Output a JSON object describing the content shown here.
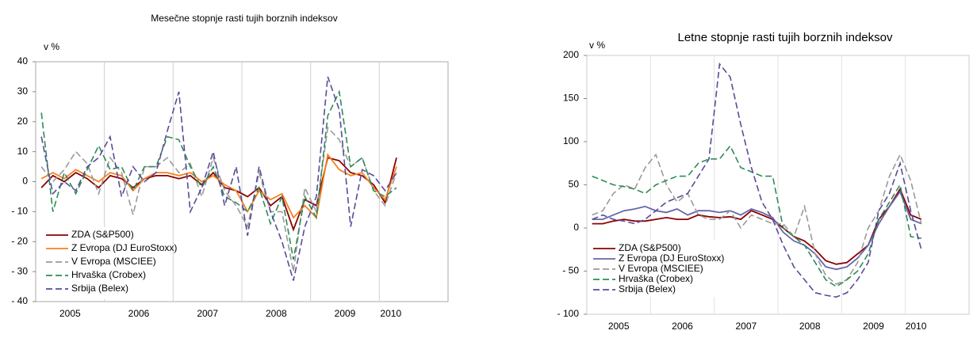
{
  "chart_data": [
    {
      "type": "line",
      "title": "Mesečne stopnje rasti tujih borznih indeksov",
      "y_label": "v %",
      "categories": [
        null,
        null,
        null,
        "2005",
        null,
        null,
        null,
        null,
        null,
        "2006",
        null,
        null,
        null,
        null,
        null,
        "2007",
        null,
        null,
        null,
        null,
        null,
        "2008",
        null,
        null,
        null,
        null,
        null,
        "2009",
        null,
        null,
        null,
        "2010"
      ],
      "ylim": [
        -40,
        40
      ],
      "yticks": [
        {
          "value": -40,
          "label": "- 40"
        },
        {
          "value": -30,
          "label": "- 30"
        },
        {
          "value": -20,
          "label": "- 20"
        },
        {
          "value": -10,
          "label": "- 10"
        },
        0,
        10,
        20,
        30,
        40
      ],
      "grid": false,
      "legend": "lower left",
      "series": [
        {
          "name": "ZDA (S&P500)",
          "color": "#8b0000",
          "dashed": false,
          "values": [
            -2,
            2,
            0,
            3,
            1,
            -2,
            2,
            1,
            -2,
            1,
            2,
            2,
            1,
            2,
            -1,
            3,
            -2,
            -3,
            -5,
            -2,
            -8,
            -5,
            -16,
            -6,
            -8,
            8,
            7,
            3,
            2,
            -1,
            -7,
            8
          ]
        },
        {
          "name": "Z Evropa (DJ EuroStoxx)",
          "color": "#f58220",
          "dashed": false,
          "values": [
            1,
            3,
            1,
            4,
            2,
            0,
            3,
            2,
            -3,
            1,
            3,
            3,
            2,
            3,
            0,
            2,
            -1,
            -3,
            -10,
            -3,
            -6,
            -4,
            -12,
            -8,
            -12,
            9,
            4,
            2,
            3,
            -2,
            -6,
            5
          ]
        },
        {
          "name": "V Evropa (MSCIEE)",
          "color": "#9a9a9a",
          "dashed": true,
          "values": [
            5,
            0,
            4,
            10,
            6,
            -4,
            8,
            3,
            -11,
            5,
            5,
            8,
            3,
            6,
            -5,
            8,
            -3,
            -8,
            -15,
            3,
            -10,
            -10,
            -30,
            -2,
            -10,
            18,
            14,
            5,
            8,
            -3,
            -8,
            3
          ]
        },
        {
          "name": "Hrvaška (Crobex)",
          "color": "#2e8b57",
          "dashed": true,
          "values": [
            23,
            -10,
            3,
            -4,
            4,
            12,
            4,
            5,
            -3,
            5,
            5,
            15,
            14,
            5,
            -2,
            5,
            -5,
            -7,
            -10,
            -2,
            -14,
            -5,
            -26,
            -5,
            -12,
            22,
            30,
            5,
            8,
            -3,
            -5,
            -2
          ]
        },
        {
          "name": "Srbija (Belex)",
          "color": "#5b4a9a",
          "dashed": true,
          "values": [
            15,
            -4,
            0,
            -3,
            5,
            8,
            15,
            -5,
            5,
            0,
            3,
            17,
            30,
            -10,
            -2,
            10,
            -8,
            5,
            -18,
            5,
            -10,
            -20,
            -33,
            -15,
            -5,
            35,
            24,
            -15,
            4,
            2,
            -3,
            3
          ]
        }
      ]
    },
    {
      "type": "line",
      "title": "Letne stopnje rasti tujih borznih indeksov",
      "y_label": "v %",
      "categories": [
        null,
        null,
        null,
        "2005",
        null,
        null,
        null,
        null,
        null,
        "2006",
        null,
        null,
        null,
        null,
        null,
        "2007",
        null,
        null,
        null,
        null,
        null,
        "2008",
        null,
        null,
        null,
        null,
        null,
        "2009",
        null,
        null,
        null,
        "2010"
      ],
      "ylim": [
        -100,
        200
      ],
      "yticks": [
        {
          "value": -100,
          "label": "- 100"
        },
        {
          "value": -50,
          "label": "- 50"
        },
        0,
        50,
        100,
        150,
        200
      ],
      "grid": false,
      "legend": "lower left",
      "series": [
        {
          "name": "ZDA (S&P500)",
          "color": "#8b0000",
          "dashed": false,
          "values": [
            5,
            5,
            8,
            10,
            8,
            8,
            10,
            12,
            10,
            10,
            15,
            13,
            12,
            13,
            10,
            20,
            15,
            10,
            0,
            -10,
            -15,
            -25,
            -38,
            -42,
            -40,
            -30,
            -20,
            10,
            25,
            45,
            15,
            10
          ]
        },
        {
          "name": "Z Evropa (DJ EuroStoxx)",
          "color": "#6666aa",
          "dashed": false,
          "values": [
            10,
            10,
            15,
            20,
            22,
            25,
            20,
            18,
            22,
            15,
            20,
            20,
            18,
            20,
            15,
            22,
            18,
            12,
            -5,
            -15,
            -20,
            -30,
            -45,
            -48,
            -45,
            -35,
            -20,
            5,
            25,
            42,
            10,
            5
          ]
        },
        {
          "name": "V Evropa (MSCIEE)",
          "color": "#9a9a9a",
          "dashed": true,
          "values": [
            15,
            20,
            40,
            50,
            45,
            70,
            85,
            50,
            30,
            40,
            15,
            10,
            10,
            20,
            0,
            15,
            10,
            5,
            5,
            -10,
            25,
            -30,
            -55,
            -65,
            -60,
            -40,
            0,
            20,
            60,
            85,
            55,
            5
          ]
        },
        {
          "name": "Hrvaška (Crobex)",
          "color": "#2e8b57",
          "dashed": true,
          "values": [
            60,
            55,
            50,
            48,
            45,
            40,
            50,
            55,
            60,
            60,
            75,
            80,
            80,
            95,
            70,
            65,
            60,
            60,
            0,
            -10,
            -20,
            -40,
            -60,
            -68,
            -60,
            -50,
            -30,
            10,
            30,
            50,
            -10,
            -12
          ]
        },
        {
          "name": "Srbija (Belex)",
          "color": "#5b4a9a",
          "dashed": true,
          "values": [
            10,
            15,
            10,
            8,
            5,
            10,
            20,
            30,
            35,
            40,
            60,
            80,
            190,
            175,
            120,
            70,
            30,
            10,
            -20,
            -45,
            -60,
            -75,
            -78,
            -80,
            -75,
            -60,
            -40,
            20,
            40,
            75,
            20,
            -25
          ]
        }
      ]
    }
  ]
}
